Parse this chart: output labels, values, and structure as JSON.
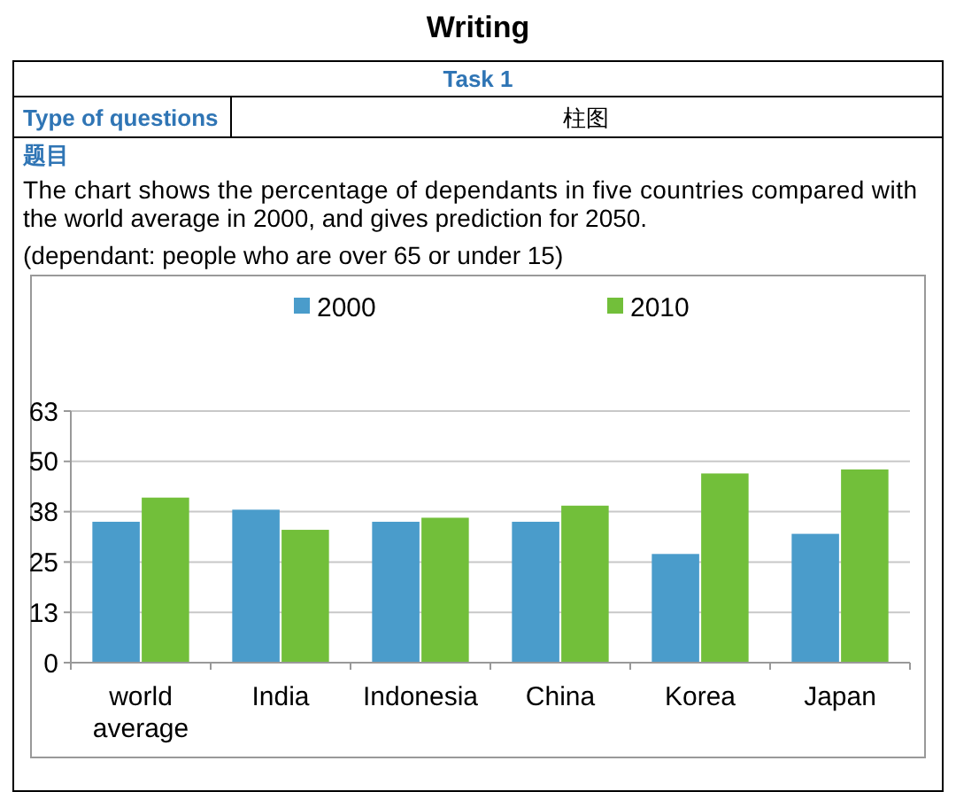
{
  "chart_data": {
    "type": "bar",
    "title": "Writing",
    "subtitle": "Task 1",
    "annotations": [
      "Type of questions",
      "柱图",
      "题目",
      "The chart shows the percentage of dependants in five countries compared with the world average in 2000, and gives prediction for 2050.",
      "(dependant: people who are over 65 or under 15)"
    ],
    "categories": [
      "world average",
      "India",
      "Indonesia",
      "China",
      "Korea",
      "Japan"
    ],
    "series": [
      {
        "name": "2000",
        "color": "#4a9ccb",
        "values": [
          35,
          38,
          35,
          35,
          27,
          32
        ]
      },
      {
        "name": "2010",
        "color": "#72bf3a",
        "values": [
          41,
          33,
          36,
          39,
          47,
          48
        ]
      }
    ],
    "ylim": [
      0,
      62.5
    ],
    "yticks": [
      0,
      {
        "value": 12.5,
        "label": "13"
      },
      25,
      {
        "value": 37.5,
        "label": "38"
      },
      50,
      {
        "value": 62.5,
        "label": "63"
      }
    ],
    "grid": "y",
    "legend": "top"
  }
}
